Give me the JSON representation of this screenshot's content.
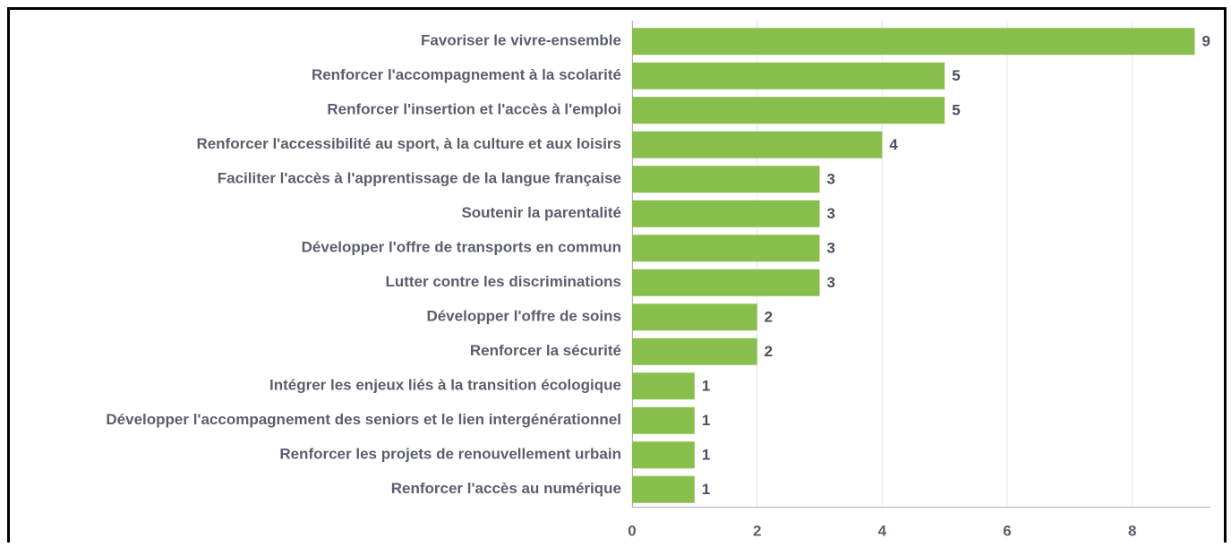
{
  "chart_data": {
    "type": "barh",
    "categories": [
      "Favoriser le vivre-ensemble",
      "Renforcer l'accompagnement à la scolarité",
      "Renforcer l'insertion et l'accès à l'emploi",
      "Renforcer l'accessibilité au sport, à la culture et aux loisirs",
      "Faciliter l'accès à l'apprentissage de la langue française",
      "Soutenir la parentalité",
      "Développer l'offre de transports en commun",
      "Lutter contre les discriminations",
      "Développer l'offre de soins",
      "Renforcer la sécurité",
      "Intégrer les enjeux liés à la transition écologique",
      "Développer l'accompagnement des seniors et le lien intergénérationnel",
      "Renforcer les projets de renouvellement urbain",
      "Renforcer l'accès au numérique"
    ],
    "values": [
      9,
      5,
      5,
      4,
      3,
      3,
      3,
      3,
      2,
      2,
      1,
      1,
      1,
      1
    ],
    "color": "#88bf4c",
    "xlim": [
      0,
      9.25
    ],
    "xticks": [
      0,
      2,
      4,
      6,
      8
    ],
    "grid": true
  }
}
